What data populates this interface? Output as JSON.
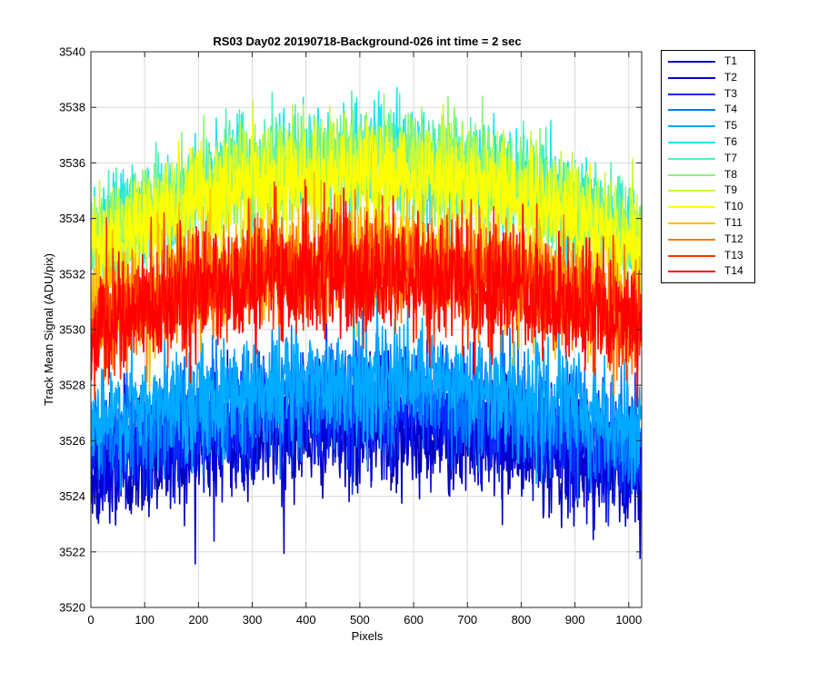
{
  "chart_data": {
    "type": "line",
    "title": "RS03 Day02 20190718-Background-026 int time = 2 sec",
    "xlabel": "Pixels",
    "ylabel": "Track Mean Signal (ADU/pix)",
    "xlim": [
      0,
      1024
    ],
    "ylim": [
      3520,
      3540
    ],
    "xticks": [
      0,
      100,
      200,
      300,
      400,
      500,
      600,
      700,
      800,
      900,
      1000
    ],
    "yticks": [
      3520,
      3522,
      3524,
      3526,
      3528,
      3530,
      3532,
      3534,
      3536,
      3538,
      3540
    ],
    "grid": true,
    "legend_position": "outside-top-right",
    "num_points": 1024,
    "series": [
      {
        "name": "T1",
        "color": "#0000b4",
        "edge_mean": 3524.5,
        "center_mean": 3526.3,
        "noise_sd": 1.0
      },
      {
        "name": "T2",
        "color": "#0000dc",
        "edge_mean": 3525.0,
        "center_mean": 3526.8,
        "noise_sd": 1.0
      },
      {
        "name": "T3",
        "color": "#0a28ff",
        "edge_mean": 3525.5,
        "center_mean": 3527.3,
        "noise_sd": 1.0
      },
      {
        "name": "T4",
        "color": "#0078ff",
        "edge_mean": 3526.0,
        "center_mean": 3527.8,
        "noise_sd": 1.0
      },
      {
        "name": "T5",
        "color": "#00aaff",
        "edge_mean": 3526.5,
        "center_mean": 3528.2,
        "noise_sd": 1.0
      },
      {
        "name": "T6",
        "color": "#1ee6f0",
        "edge_mean": 3533.2,
        "center_mean": 3536.2,
        "noise_sd": 0.9
      },
      {
        "name": "T7",
        "color": "#50f0b4",
        "edge_mean": 3533.2,
        "center_mean": 3536.2,
        "noise_sd": 0.9
      },
      {
        "name": "T8",
        "color": "#8cf478",
        "edge_mean": 3533.0,
        "center_mean": 3536.0,
        "noise_sd": 0.9
      },
      {
        "name": "T9",
        "color": "#c8fa3c",
        "edge_mean": 3533.0,
        "center_mean": 3536.0,
        "noise_sd": 0.9
      },
      {
        "name": "T10",
        "color": "#ffff00",
        "edge_mean": 3532.8,
        "center_mean": 3535.6,
        "noise_sd": 0.9
      },
      {
        "name": "T11",
        "color": "#ffbe00",
        "edge_mean": 3530.5,
        "center_mean": 3532.8,
        "noise_sd": 1.0
      },
      {
        "name": "T12",
        "color": "#ff7800",
        "edge_mean": 3530.2,
        "center_mean": 3532.5,
        "noise_sd": 1.0
      },
      {
        "name": "T13",
        "color": "#ff3200",
        "edge_mean": 3530.0,
        "center_mean": 3532.2,
        "noise_sd": 1.0
      },
      {
        "name": "T14",
        "color": "#ff0000",
        "edge_mean": 3530.0,
        "center_mean": 3532.0,
        "noise_sd": 1.0
      }
    ]
  }
}
